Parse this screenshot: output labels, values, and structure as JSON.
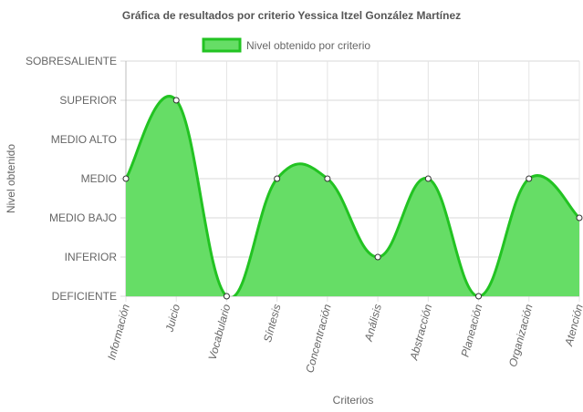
{
  "chart_data": {
    "type": "area",
    "title": "Gráfica de resultados por criterio Yessica Itzel González Martínez",
    "xlabel": "Criterios",
    "ylabel": "Nivel obtenido",
    "levels": [
      "DEFICIENTE",
      "INFERIOR",
      "MEDIO BAJO",
      "MEDIO",
      "MEDIO ALTO",
      "SUPERIOR",
      "SOBRESALIENTE"
    ],
    "categories": [
      "Información",
      "Juicio",
      "Vocabulario",
      "Síntesis",
      "Concentración",
      "Análisis",
      "Abstracción",
      "Planeación",
      "Organización",
      "Atención"
    ],
    "series": [
      {
        "name": "Nivel obtenido por criterio",
        "values": [
          "MEDIO",
          "SUPERIOR",
          "DEFICIENTE",
          "MEDIO",
          "MEDIO",
          "INFERIOR",
          "MEDIO",
          "DEFICIENTE",
          "MEDIO",
          "MEDIO BAJO"
        ],
        "fill_color": "#66dd66",
        "line_color": "#22c322"
      }
    ],
    "grid": true,
    "legend": "top"
  }
}
